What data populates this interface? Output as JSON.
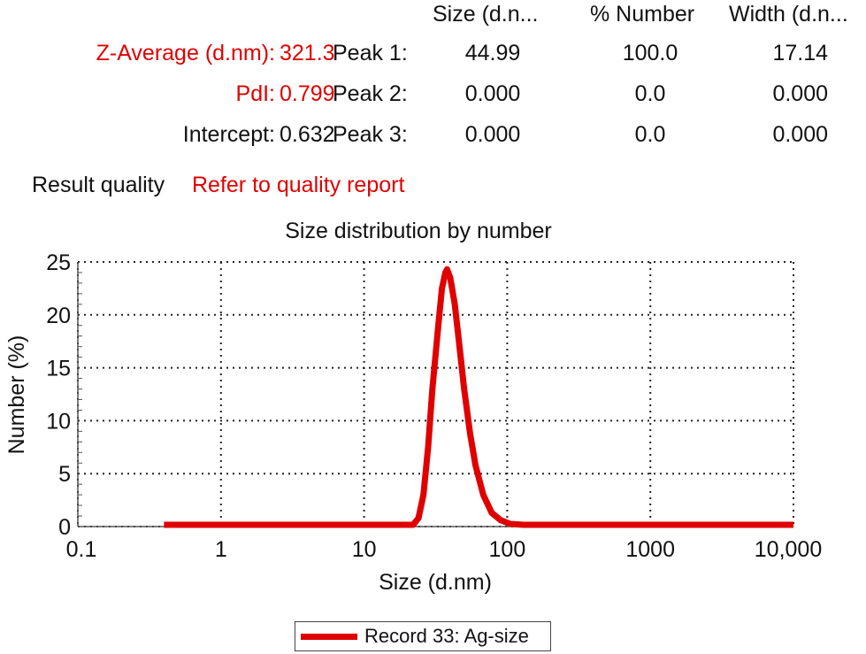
{
  "summary": {
    "z_average": {
      "label": "Z-Average (d.nm):",
      "value": "321.3"
    },
    "pdi": {
      "label": "PdI:",
      "value": "0.799"
    },
    "intercept": {
      "label": "Intercept:",
      "value": "0.632"
    },
    "result_quality": {
      "label": "Result quality",
      "value": "Refer to quality report"
    }
  },
  "peaks": {
    "headers": [
      "Size (d.n...",
      "% Number",
      "Width (d.n..."
    ],
    "rows": [
      {
        "label": "Peak 1:",
        "size": "44.99",
        "number": "100.0",
        "width": "17.14"
      },
      {
        "label": "Peak 2:",
        "size": "0.000",
        "number": "0.0",
        "width": "0.000"
      },
      {
        "label": "Peak 3:",
        "size": "0.000",
        "number": "0.0",
        "width": "0.000"
      }
    ]
  },
  "colors": {
    "accent": "#e00000",
    "grid": "#222222",
    "text": "#111111"
  },
  "chart_data": {
    "type": "line",
    "title": "Size distribution by number",
    "xlabel": "Size (d.nm)",
    "ylabel": "Number (%)",
    "xscale": "log",
    "xlim": [
      0.1,
      10000
    ],
    "ylim": [
      0,
      25
    ],
    "x_ticks": [
      0.1,
      1,
      10,
      100,
      1000,
      10000
    ],
    "x_tick_labels": [
      "0.1",
      "1",
      "10",
      "100",
      "1000",
      "10,000"
    ],
    "y_ticks": [
      0,
      5,
      10,
      15,
      20,
      25
    ],
    "y_tick_labels": [
      "0",
      "5",
      "10",
      "15",
      "20",
      "25"
    ],
    "grid": true,
    "legend_position": "bottom-center",
    "series": [
      {
        "name": "Record 33: Ag-size",
        "color": "#e00000",
        "x": [
          0.4,
          5,
          22,
          24,
          26,
          28,
          30,
          33,
          35,
          37,
          38,
          40,
          43,
          46,
          50,
          55,
          60,
          68,
          78,
          90,
          105,
          130,
          160,
          200,
          300,
          1000,
          10000
        ],
        "y": [
          0,
          0,
          0,
          0.8,
          3,
          7.5,
          13,
          19,
          22.5,
          24,
          24.3,
          23.5,
          21,
          17.5,
          13,
          8.8,
          5.8,
          3,
          1.3,
          0.6,
          0.25,
          0.1,
          0.03,
          0,
          0,
          0,
          0
        ]
      }
    ]
  }
}
